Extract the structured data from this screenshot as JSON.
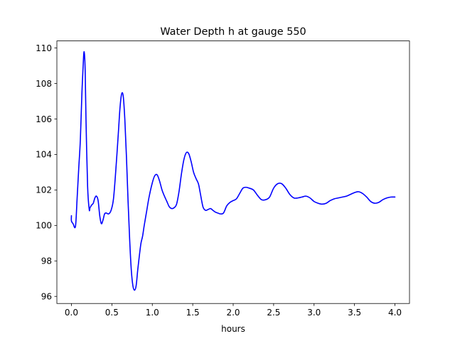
{
  "chart_data": {
    "type": "line",
    "title": "Water Depth h at gauge 550",
    "xlabel": "hours",
    "ylabel": "",
    "xlim": [
      -0.18,
      4.18
    ],
    "ylim": [
      95.6,
      110.4
    ],
    "xticks": [
      0.0,
      0.5,
      1.0,
      1.5,
      2.0,
      2.5,
      3.0,
      3.5,
      4.0
    ],
    "xtick_labels": [
      "0.0",
      "0.5",
      "1.0",
      "1.5",
      "2.0",
      "2.5",
      "3.0",
      "3.5",
      "4.0"
    ],
    "yticks": [
      96,
      98,
      100,
      102,
      104,
      106,
      108,
      110
    ],
    "ytick_labels": [
      "96",
      "98",
      "100",
      "102",
      "104",
      "106",
      "108",
      "110"
    ],
    "grid": false,
    "series": [
      {
        "color": "#0000ff",
        "x": [
          0.0,
          0.0,
          0.02,
          0.05,
          0.07,
          0.09,
          0.11,
          0.13,
          0.15,
          0.16,
          0.17,
          0.18,
          0.2,
          0.22,
          0.23,
          0.25,
          0.27,
          0.29,
          0.31,
          0.33,
          0.35,
          0.37,
          0.39,
          0.41,
          0.43,
          0.46,
          0.49,
          0.52,
          0.55,
          0.58,
          0.6,
          0.62,
          0.64,
          0.66,
          0.68,
          0.7,
          0.72,
          0.74,
          0.76,
          0.78,
          0.8,
          0.82,
          0.84,
          0.86,
          0.88,
          0.9,
          0.93,
          0.96,
          1.0,
          1.03,
          1.06,
          1.09,
          1.12,
          1.15,
          1.18,
          1.21,
          1.24,
          1.27,
          1.3,
          1.33,
          1.36,
          1.39,
          1.42,
          1.45,
          1.48,
          1.51,
          1.54,
          1.57,
          1.59,
          1.61,
          1.63,
          1.66,
          1.69,
          1.72,
          1.75,
          1.78,
          1.81,
          1.84,
          1.88,
          1.92,
          1.96,
          2.0,
          2.04,
          2.08,
          2.12,
          2.16,
          2.2,
          2.25,
          2.3,
          2.35,
          2.4,
          2.45,
          2.5,
          2.55,
          2.6,
          2.65,
          2.7,
          2.75,
          2.8,
          2.85,
          2.9,
          2.95,
          3.0,
          3.05,
          3.1,
          3.15,
          3.2,
          3.25,
          3.3,
          3.35,
          3.4,
          3.45,
          3.5,
          3.55,
          3.6,
          3.65,
          3.7,
          3.75,
          3.8,
          3.85,
          3.9,
          3.95,
          4.0
        ],
        "y": [
          100.55,
          100.25,
          100.1,
          99.95,
          101.5,
          103.2,
          104.8,
          107.5,
          109.5,
          109.7,
          108.7,
          106.0,
          102.2,
          100.9,
          101.0,
          101.15,
          101.25,
          101.55,
          101.65,
          101.4,
          100.55,
          100.1,
          100.3,
          100.65,
          100.7,
          100.65,
          100.85,
          101.5,
          103.2,
          105.2,
          106.6,
          107.4,
          107.3,
          106.0,
          103.9,
          101.4,
          99.2,
          97.5,
          96.6,
          96.35,
          96.6,
          97.5,
          98.3,
          99.0,
          99.4,
          100.0,
          100.8,
          101.6,
          102.4,
          102.8,
          102.85,
          102.5,
          102.0,
          101.65,
          101.35,
          101.05,
          100.95,
          101.0,
          101.2,
          101.9,
          102.9,
          103.7,
          104.1,
          104.05,
          103.6,
          103.0,
          102.65,
          102.35,
          101.9,
          101.4,
          101.0,
          100.85,
          100.9,
          100.95,
          100.85,
          100.75,
          100.7,
          100.65,
          100.7,
          101.1,
          101.3,
          101.4,
          101.5,
          101.8,
          102.1,
          102.15,
          102.1,
          102.0,
          101.7,
          101.45,
          101.45,
          101.6,
          102.1,
          102.35,
          102.35,
          102.1,
          101.75,
          101.55,
          101.55,
          101.6,
          101.65,
          101.55,
          101.35,
          101.25,
          101.2,
          101.25,
          101.4,
          101.5,
          101.55,
          101.6,
          101.65,
          101.75,
          101.85,
          101.9,
          101.8,
          101.6,
          101.35,
          101.25,
          101.3,
          101.45,
          101.55,
          101.6,
          101.6
        ]
      }
    ]
  }
}
